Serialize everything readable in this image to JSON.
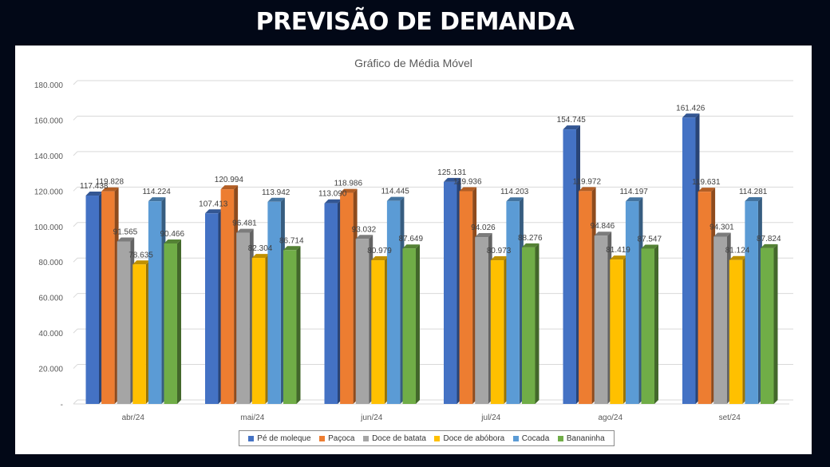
{
  "header": {
    "title": "PREVISÃO DE DEMANDA"
  },
  "chart_data": {
    "type": "bar",
    "title": "Gráfico de Média Móvel",
    "categories": [
      "abr/24",
      "mai/24",
      "jun/24",
      "jul/24",
      "ago/24",
      "set/24"
    ],
    "yticks": [
      "-",
      "20.000",
      "40.000",
      "60.000",
      "80.000",
      "100.000",
      "120.000",
      "140.000",
      "160.000",
      "180.000"
    ],
    "ylim": [
      0,
      180000
    ],
    "grid": true,
    "legend_position": "bottom",
    "series": [
      {
        "name": "Pé de moleque",
        "color": "#4472C4",
        "values": [
          117438,
          107413,
          113090,
          125131,
          154745,
          161426
        ],
        "labels": [
          "117.438",
          "107.413",
          "113.090",
          "125.131",
          "154.745",
          "161.426"
        ]
      },
      {
        "name": "Paçoca",
        "color": "#ED7D31",
        "values": [
          119828,
          120994,
          118986,
          119936,
          119972,
          119631
        ],
        "labels": [
          "119.828",
          "120.994",
          "118.986",
          "119.936",
          "119.972",
          "119.631"
        ]
      },
      {
        "name": "Doce de batata",
        "color": "#A5A5A5",
        "values": [
          91565,
          96481,
          93032,
          94026,
          94846,
          94301
        ],
        "labels": [
          "91.565",
          "96.481",
          "93.032",
          "94.026",
          "94.846",
          "94.301"
        ]
      },
      {
        "name": "Doce de abóbora",
        "color": "#FFC000",
        "values": [
          78635,
          82304,
          80979,
          80973,
          81419,
          81124
        ],
        "labels": [
          "78.635",
          "82.304",
          "80.979",
          "80.973",
          "81.419",
          "81.124"
        ]
      },
      {
        "name": "Cocada",
        "color": "#5B9BD5",
        "values": [
          114224,
          113942,
          114445,
          114203,
          114197,
          114281
        ],
        "labels": [
          "114.224",
          "113.942",
          "114.445",
          "114.203",
          "114.197",
          "114.281"
        ]
      },
      {
        "name": "Bananinha",
        "color": "#70AD47",
        "values": [
          90466,
          86714,
          87649,
          88276,
          87547,
          87824
        ],
        "labels": [
          "90.466",
          "86.714",
          "87.649",
          "88.276",
          "87.547",
          "87.824"
        ]
      }
    ]
  }
}
